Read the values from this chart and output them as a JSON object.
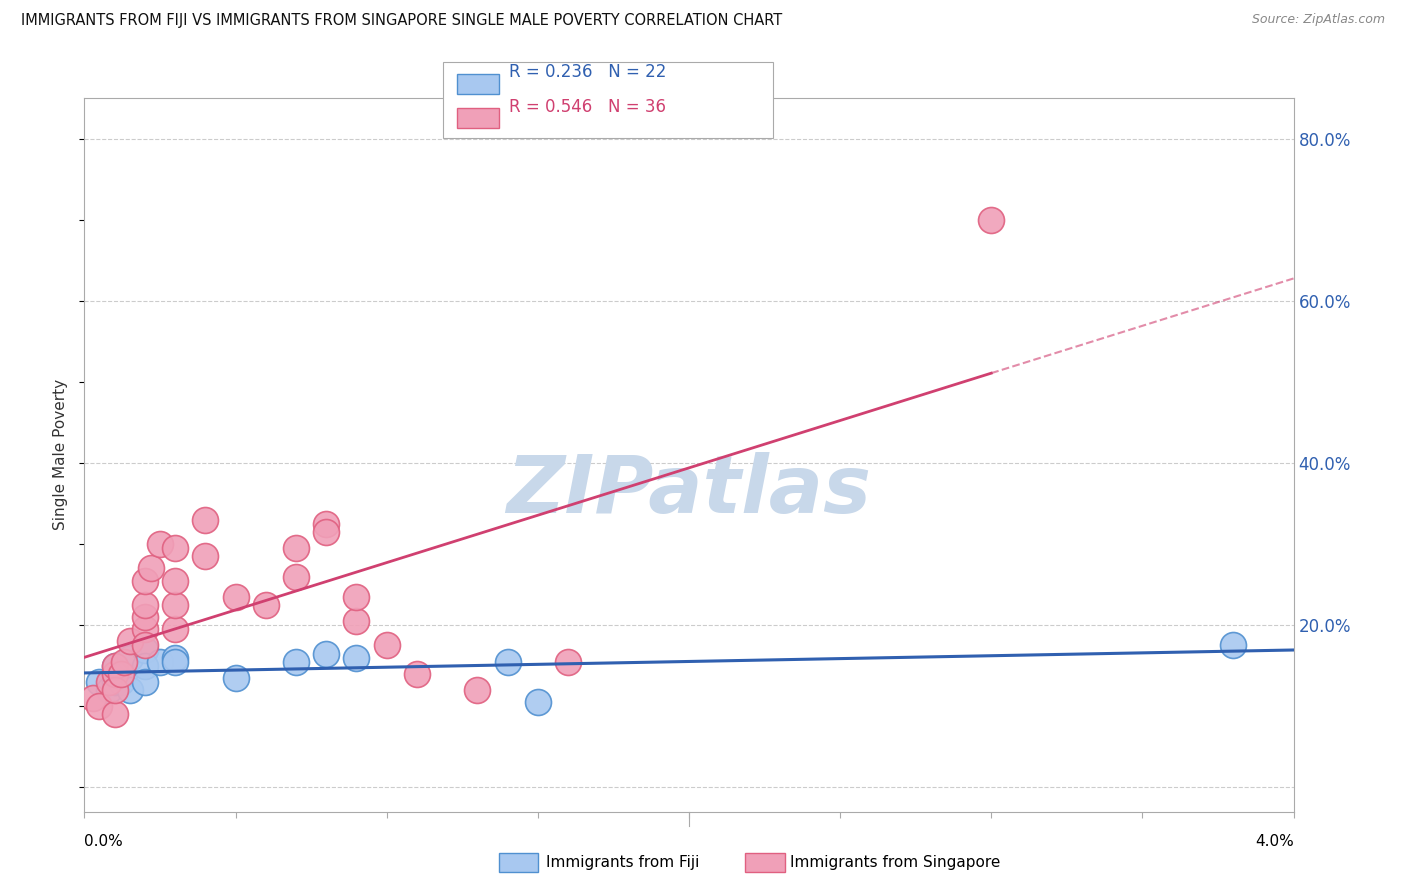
{
  "title": "IMMIGRANTS FROM FIJI VS IMMIGRANTS FROM SINGAPORE SINGLE MALE POVERTY CORRELATION CHART",
  "source": "Source: ZipAtlas.com",
  "ylabel": "Single Male Poverty",
  "xmin": 0.0,
  "xmax": 0.04,
  "ymin": -0.03,
  "ymax": 0.85,
  "fiji_color": "#a8c8f0",
  "fiji_edge_color": "#5090d0",
  "fiji_line_color": "#3060b0",
  "singapore_color": "#f0a0b8",
  "singapore_edge_color": "#e06080",
  "singapore_line_color": "#d04070",
  "watermark_color": "#c8d8ea",
  "fiji_x": [
    0.0005,
    0.0008,
    0.001,
    0.001,
    0.001,
    0.0012,
    0.0013,
    0.0015,
    0.0015,
    0.002,
    0.002,
    0.002,
    0.0025,
    0.003,
    0.003,
    0.005,
    0.007,
    0.008,
    0.009,
    0.014,
    0.015,
    0.038
  ],
  "fiji_y": [
    0.13,
    0.12,
    0.14,
    0.13,
    0.15,
    0.13,
    0.14,
    0.12,
    0.16,
    0.17,
    0.15,
    0.13,
    0.155,
    0.16,
    0.155,
    0.135,
    0.155,
    0.165,
    0.16,
    0.155,
    0.105,
    0.175
  ],
  "singapore_x": [
    0.0003,
    0.0005,
    0.0008,
    0.001,
    0.001,
    0.001,
    0.001,
    0.0012,
    0.0013,
    0.0015,
    0.002,
    0.002,
    0.002,
    0.002,
    0.002,
    0.0022,
    0.0025,
    0.003,
    0.003,
    0.003,
    0.003,
    0.004,
    0.004,
    0.005,
    0.006,
    0.007,
    0.007,
    0.008,
    0.008,
    0.009,
    0.009,
    0.01,
    0.011,
    0.013,
    0.016,
    0.03
  ],
  "singapore_y": [
    0.11,
    0.1,
    0.13,
    0.14,
    0.15,
    0.09,
    0.12,
    0.14,
    0.155,
    0.18,
    0.195,
    0.21,
    0.225,
    0.255,
    0.175,
    0.27,
    0.3,
    0.195,
    0.225,
    0.255,
    0.295,
    0.285,
    0.33,
    0.235,
    0.225,
    0.26,
    0.295,
    0.325,
    0.315,
    0.205,
    0.235,
    0.175,
    0.14,
    0.12,
    0.155,
    0.7
  ]
}
